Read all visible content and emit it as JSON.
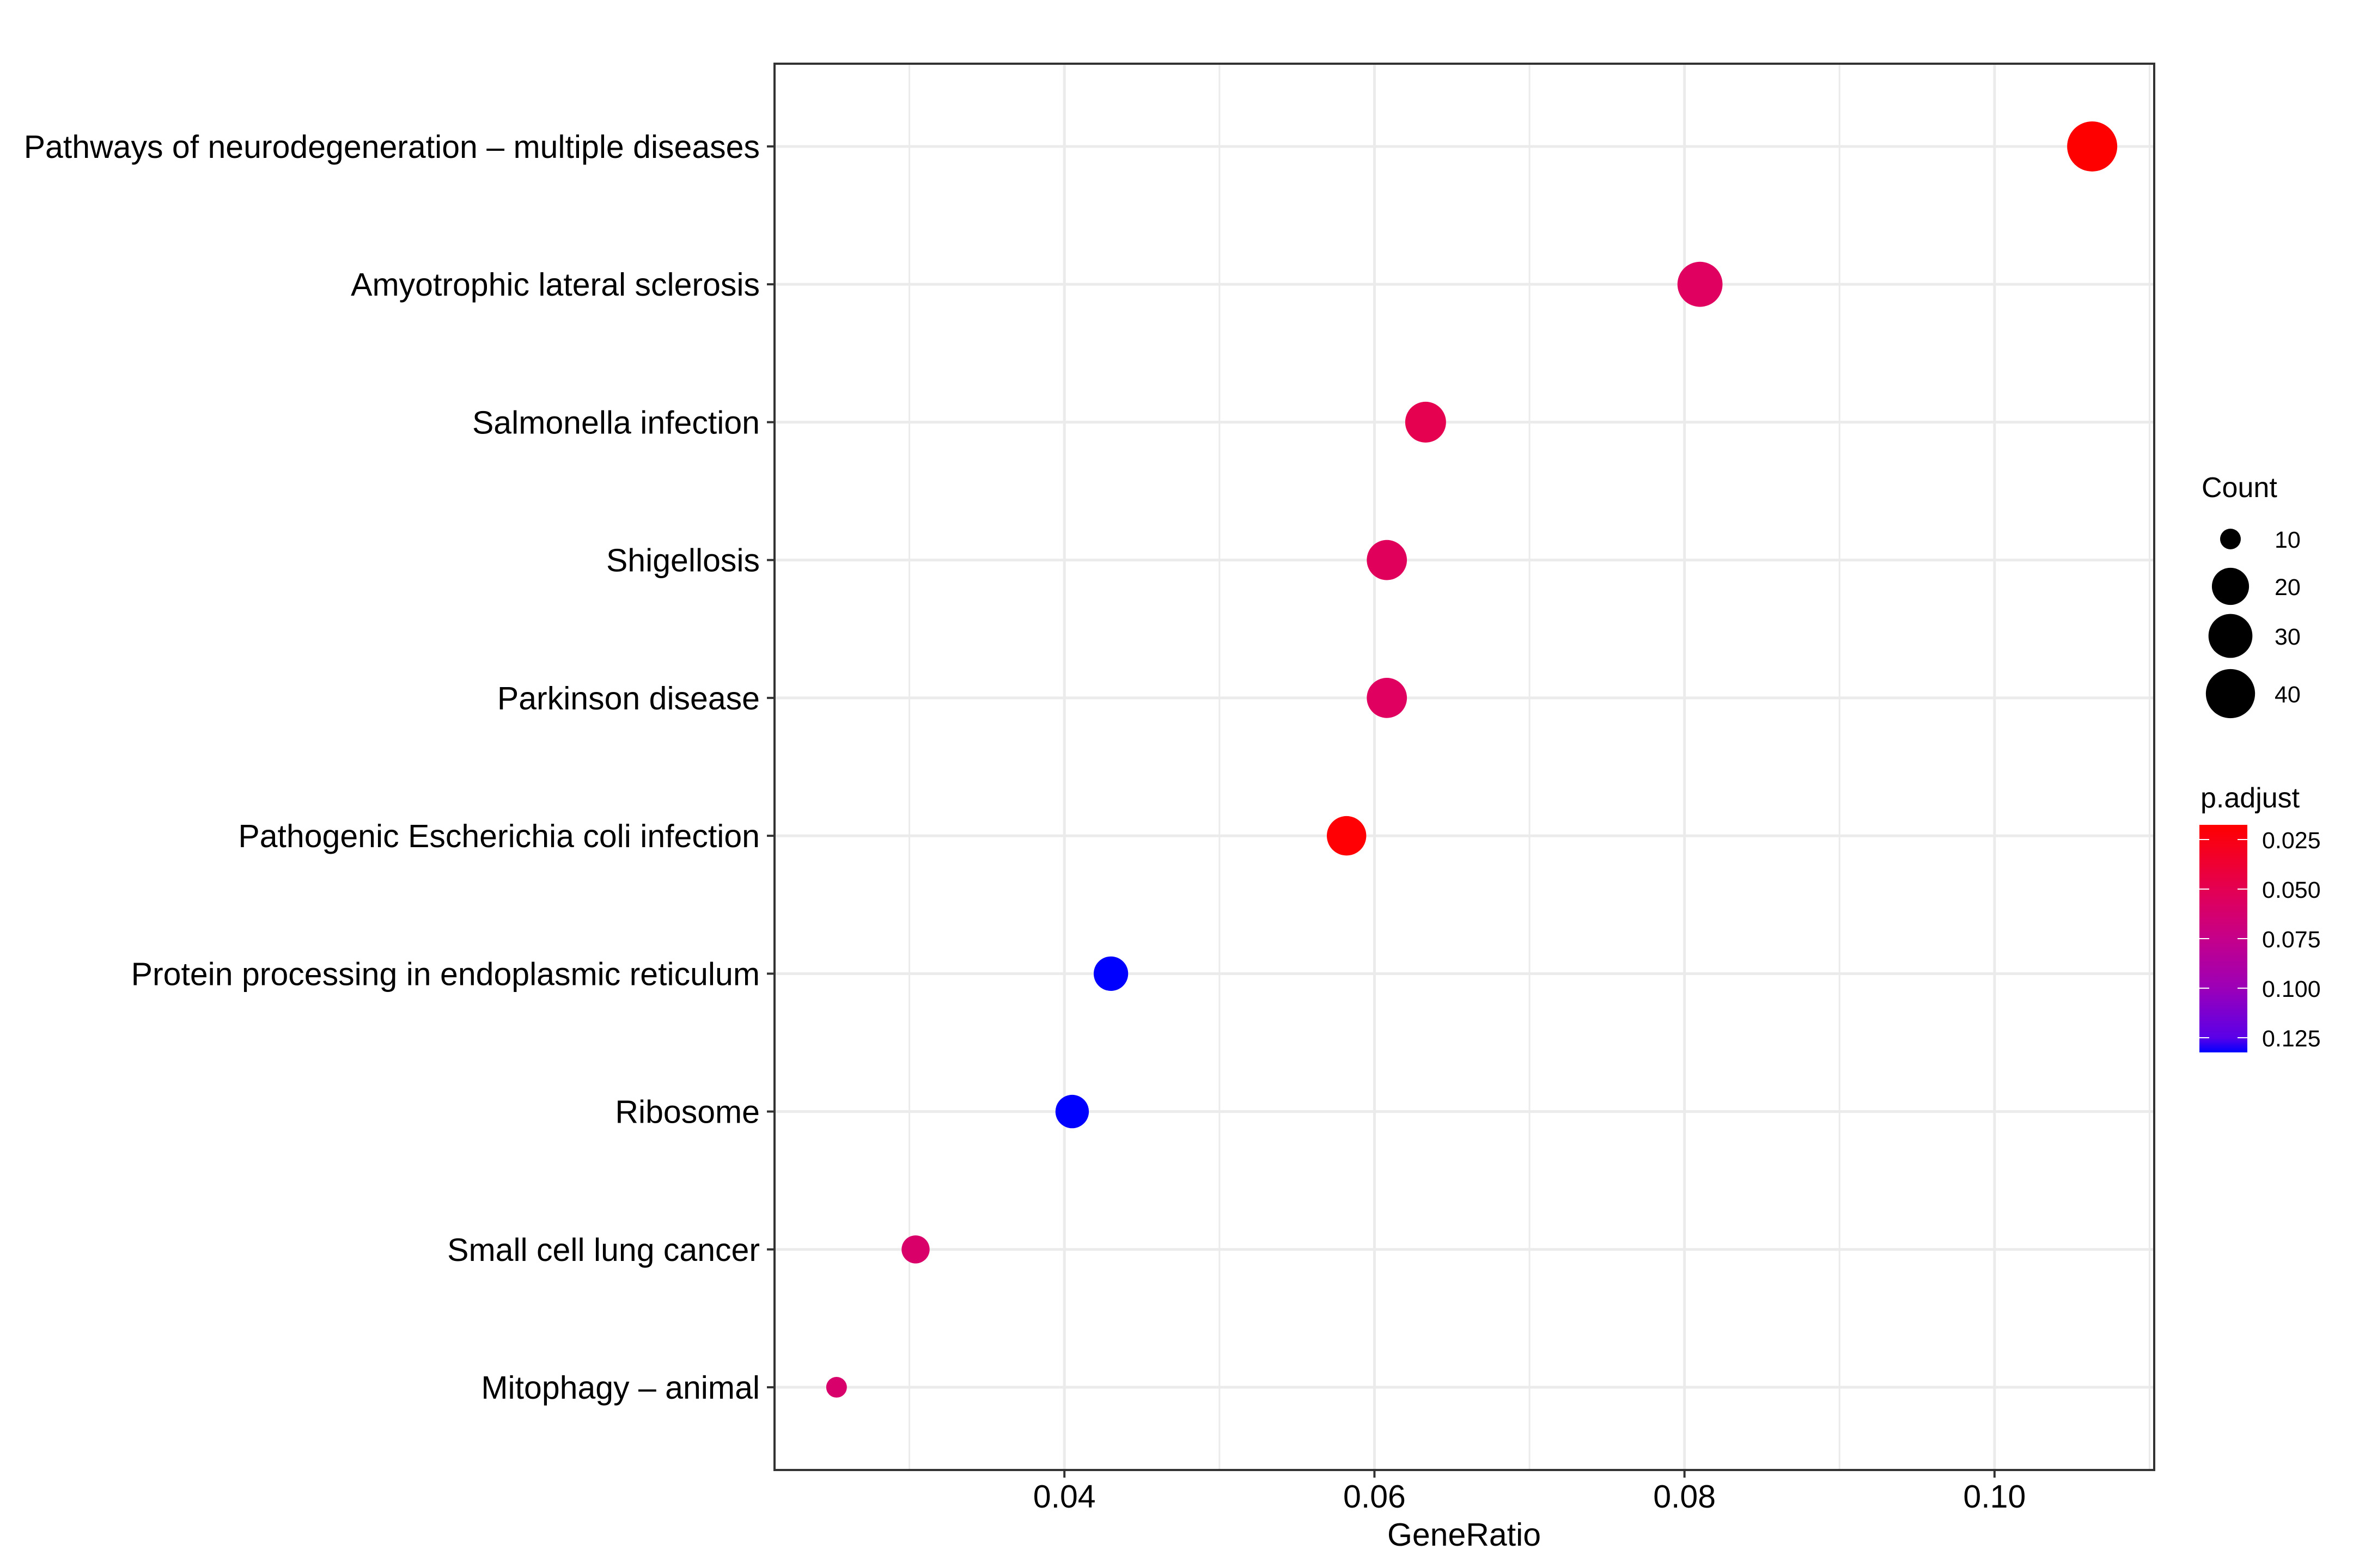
{
  "chart_data": {
    "type": "scatter",
    "subtype": "dot-plot",
    "title": "",
    "xlabel": "GeneRatio",
    "ylabel": "",
    "xlim": [
      0.0213,
      0.1103
    ],
    "x_ticks": [
      0.04,
      0.06,
      0.08,
      0.1
    ],
    "x_tick_labels": [
      "0.04",
      "0.06",
      "0.08",
      "0.10"
    ],
    "x_minor_ticks": [
      0.03,
      0.05,
      0.07,
      0.09,
      0.11
    ],
    "grid": true,
    "legend_position": "right",
    "categories": [
      "Pathways of neurodegeneration – multiple diseases",
      "Amyotrophic lateral sclerosis",
      "Salmonella infection",
      "Shigellosis",
      "Parkinson disease",
      "Pathogenic Escherichia coli infection",
      "Protein processing in endoplasmic reticulum",
      "Ribosome",
      "Small cell lung cancer",
      "Mitophagy – animal"
    ],
    "points": [
      {
        "category": "Pathways of neurodegeneration – multiple diseases",
        "GeneRatio": 0.1063,
        "Count": 42,
        "p_adjust": 0.018,
        "color": "#FF0000"
      },
      {
        "category": "Amyotrophic lateral sclerosis",
        "GeneRatio": 0.081,
        "Count": 32,
        "p_adjust": 0.056,
        "color": "#DF0060"
      },
      {
        "category": "Salmonella infection",
        "GeneRatio": 0.0633,
        "Count": 25,
        "p_adjust": 0.046,
        "color": "#E60050"
      },
      {
        "category": "Shigellosis",
        "GeneRatio": 0.0608,
        "Count": 24,
        "p_adjust": 0.054,
        "color": "#E0005C"
      },
      {
        "category": "Parkinson disease",
        "GeneRatio": 0.0608,
        "Count": 24,
        "p_adjust": 0.056,
        "color": "#DF0060"
      },
      {
        "category": "Pathogenic Escherichia coli infection",
        "GeneRatio": 0.0582,
        "Count": 23,
        "p_adjust": 0.019,
        "color": "#FF0004"
      },
      {
        "category": "Protein processing in endoplasmic reticulum",
        "GeneRatio": 0.043,
        "Count": 17,
        "p_adjust": 0.132,
        "color": "#0000FF"
      },
      {
        "category": "Ribosome",
        "GeneRatio": 0.0405,
        "Count": 16,
        "p_adjust": 0.132,
        "color": "#0000FF"
      },
      {
        "category": "Small cell lung cancer",
        "GeneRatio": 0.0304,
        "Count": 12,
        "p_adjust": 0.062,
        "color": "#D9006A"
      },
      {
        "category": "Mitophagy – animal",
        "GeneRatio": 0.0253,
        "Count": 10,
        "p_adjust": 0.062,
        "color": "#D8006A"
      }
    ],
    "size_legend": {
      "title": "Count",
      "breaks": [
        10,
        20,
        30,
        40
      ],
      "labels": [
        "10",
        "20",
        "30",
        "40"
      ],
      "limits": [
        10,
        42
      ],
      "color": "#000000"
    },
    "color_legend": {
      "title": "p.adjust",
      "breaks": [
        0.025,
        0.05,
        0.075,
        0.1,
        0.125
      ],
      "labels": [
        "0.025",
        "0.050",
        "0.075",
        "0.100",
        "0.125"
      ],
      "limits": [
        0.0176,
        0.1324
      ],
      "low_color": "#FF0000",
      "high_color": "#0000FF",
      "gradient_stops": [
        {
          "value": 0.0176,
          "color": "#FF0000"
        },
        {
          "value": 0.05,
          "color": "#E40052"
        },
        {
          "value": 0.075,
          "color": "#C5008A"
        },
        {
          "value": 0.1,
          "color": "#9C00B8"
        },
        {
          "value": 0.125,
          "color": "#5A00E8"
        },
        {
          "value": 0.1324,
          "color": "#0000FF"
        }
      ]
    }
  }
}
